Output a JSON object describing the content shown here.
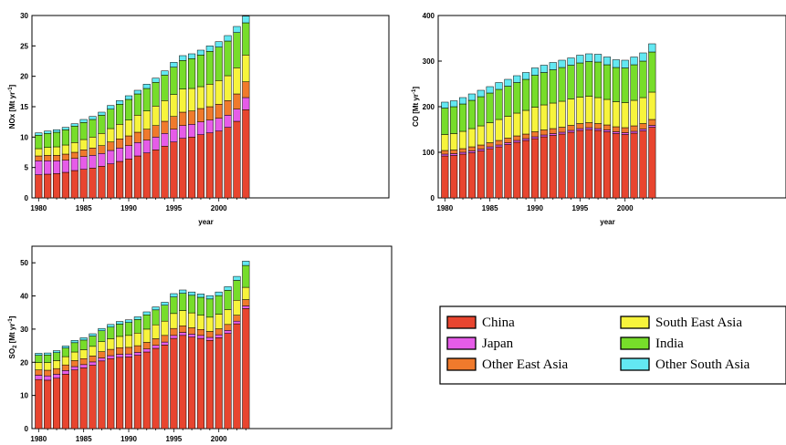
{
  "colors": {
    "China": "#e8452f",
    "Japan": "#e65ce8",
    "Other East Asia": "#f07a2c",
    "South East Asia": "#f7f43c",
    "India": "#77dd2a",
    "Other South Asia": "#63e8f2"
  },
  "legend": [
    {
      "name": "China",
      "color": "#e8452f"
    },
    {
      "name": "South East Asia",
      "color": "#f7f43c"
    },
    {
      "name": "Japan",
      "color": "#e65ce8"
    },
    {
      "name": "India",
      "color": "#77dd2a"
    },
    {
      "name": "Other East Asia",
      "color": "#f07a2c"
    },
    {
      "name": "Other South Asia",
      "color": "#63e8f2"
    }
  ],
  "chart_data": [
    {
      "type": "bar",
      "stacked": true,
      "ylabel_main": "NOx [Mt yr",
      "ylabel_sup": "-1",
      "ylabel_tail": "]",
      "xlabel": "year",
      "ylim": [
        0,
        30
      ],
      "yticks": [
        0,
        5,
        10,
        15,
        20,
        25,
        30
      ],
      "xtick_labels": [
        "1980",
        "1985",
        "1990",
        "1995",
        "2000"
      ],
      "x": [
        1980,
        1981,
        1982,
        1983,
        1984,
        1985,
        1986,
        1987,
        1988,
        1989,
        1990,
        1991,
        1992,
        1993,
        1994,
        1995,
        1996,
        1997,
        1998,
        1999,
        2000,
        2001,
        2002,
        2003
      ],
      "series": [
        {
          "name": "China",
          "values": [
            3.8,
            3.9,
            4.0,
            4.2,
            4.5,
            4.7,
            4.9,
            5.2,
            5.6,
            6.0,
            6.4,
            6.9,
            7.4,
            7.9,
            8.5,
            9.2,
            9.8,
            10.0,
            10.4,
            10.7,
            11.0,
            11.6,
            12.6,
            14.5
          ]
        },
        {
          "name": "Japan",
          "values": [
            2.3,
            2.2,
            2.1,
            2.0,
            2.0,
            2.1,
            2.1,
            2.1,
            2.2,
            2.2,
            2.2,
            2.2,
            2.1,
            2.1,
            2.1,
            2.1,
            2.1,
            2.1,
            2.1,
            2.1,
            2.1,
            2.0,
            2.0,
            2.0
          ]
        },
        {
          "name": "Other East Asia",
          "values": [
            0.8,
            0.9,
            0.9,
            1.0,
            1.0,
            1.1,
            1.2,
            1.3,
            1.4,
            1.5,
            1.6,
            1.7,
            1.8,
            1.9,
            2.0,
            2.1,
            2.2,
            2.2,
            2.2,
            2.2,
            2.3,
            2.4,
            2.5,
            2.6
          ]
        },
        {
          "name": "South East Asia",
          "values": [
            1.2,
            1.3,
            1.4,
            1.5,
            1.6,
            1.7,
            1.8,
            2.0,
            2.2,
            2.4,
            2.6,
            2.8,
            3.0,
            3.2,
            3.4,
            3.6,
            3.8,
            3.7,
            3.6,
            3.7,
            3.9,
            4.1,
            4.3,
            4.4
          ]
        },
        {
          "name": "India",
          "values": [
            2.2,
            2.3,
            2.4,
            2.5,
            2.7,
            2.8,
            2.9,
            3.0,
            3.2,
            3.3,
            3.4,
            3.5,
            3.7,
            3.9,
            4.2,
            4.5,
            4.7,
            4.9,
            5.2,
            5.4,
            5.5,
            5.7,
            5.8,
            5.3
          ]
        },
        {
          "name": "Other South Asia",
          "values": [
            0.4,
            0.4,
            0.4,
            0.4,
            0.4,
            0.5,
            0.5,
            0.5,
            0.6,
            0.6,
            0.6,
            0.6,
            0.7,
            0.7,
            0.7,
            0.8,
            0.8,
            0.8,
            0.8,
            0.9,
            0.9,
            0.9,
            1.0,
            1.1
          ]
        }
      ]
    },
    {
      "type": "bar",
      "stacked": true,
      "ylabel_main": "CO [Mt yr",
      "ylabel_sup": "-1",
      "ylabel_tail": "]",
      "xlabel": "year",
      "ylim": [
        0,
        400
      ],
      "yticks": [
        0,
        100,
        200,
        300,
        400
      ],
      "xtick_labels": [
        "1980",
        "1985",
        "1990",
        "1995",
        "2000"
      ],
      "x": [
        1980,
        1981,
        1982,
        1983,
        1984,
        1985,
        1986,
        1987,
        1988,
        1989,
        1990,
        1991,
        1992,
        1993,
        1994,
        1995,
        1996,
        1997,
        1998,
        1999,
        2000,
        2001,
        2002,
        2003
      ],
      "series": [
        {
          "name": "China",
          "values": [
            92,
            93,
            96,
            99,
            103,
            108,
            112,
            117,
            122,
            126,
            130,
            134,
            137,
            140,
            144,
            148,
            150,
            148,
            145,
            141,
            139,
            142,
            147,
            155
          ]
        },
        {
          "name": "Japan",
          "values": [
            4,
            4,
            4,
            4,
            4,
            4,
            4,
            4,
            4,
            4,
            4,
            4,
            4,
            4,
            4,
            4,
            4,
            4,
            4,
            4,
            4,
            4,
            4,
            4
          ]
        },
        {
          "name": "Other East Asia",
          "values": [
            8,
            8,
            8,
            9,
            9,
            9,
            10,
            10,
            10,
            10,
            11,
            11,
            11,
            11,
            11,
            11,
            11,
            11,
            11,
            11,
            11,
            12,
            12,
            13
          ]
        },
        {
          "name": "South East Asia",
          "values": [
            35,
            36,
            38,
            40,
            42,
            44,
            46,
            48,
            50,
            52,
            54,
            55,
            56,
            57,
            58,
            58,
            58,
            57,
            56,
            55,
            55,
            56,
            57,
            60
          ]
        },
        {
          "name": "India",
          "values": [
            58,
            59,
            60,
            62,
            64,
            65,
            66,
            66,
            67,
            68,
            70,
            71,
            73,
            74,
            74,
            75,
            76,
            78,
            76,
            75,
            76,
            78,
            80,
            88
          ]
        },
        {
          "name": "Other South Asia",
          "values": [
            13,
            13,
            14,
            14,
            14,
            14,
            15,
            15,
            15,
            15,
            16,
            16,
            16,
            16,
            16,
            17,
            17,
            17,
            17,
            17,
            17,
            17,
            18,
            18
          ]
        }
      ]
    },
    {
      "type": "bar",
      "stacked": true,
      "ylabel_main": "SO",
      "ylabel_sub": "2",
      "ylabel_rest": " [Mt yr",
      "ylabel_sup": "-1",
      "ylabel_tail": "]",
      "xlabel": "",
      "ylim": [
        0,
        55
      ],
      "yticks": [
        0,
        10,
        20,
        30,
        40,
        50
      ],
      "xtick_labels": [
        "1980",
        "1985",
        "1990",
        "1995",
        "2000"
      ],
      "x": [
        1980,
        1981,
        1982,
        1983,
        1984,
        1985,
        1986,
        1987,
        1988,
        1989,
        1990,
        1991,
        1992,
        1993,
        1994,
        1995,
        1996,
        1997,
        1998,
        1999,
        2000,
        2001,
        2002,
        2003
      ],
      "series": [
        {
          "name": "China",
          "values": [
            14.8,
            14.6,
            15.2,
            16.4,
            17.7,
            18.3,
            19.1,
            20.4,
            21.1,
            21.5,
            21.6,
            22.1,
            23.1,
            24.2,
            25.2,
            27.2,
            28.1,
            27.6,
            27.2,
            26.6,
            27.4,
            28.7,
            31.6,
            36.2
          ]
        },
        {
          "name": "Japan",
          "values": [
            1.3,
            1.3,
            1.2,
            1.1,
            1.0,
            1.0,
            1.0,
            0.9,
            0.9,
            0.9,
            0.9,
            0.9,
            0.9,
            0.9,
            0.9,
            0.9,
            0.9,
            0.9,
            0.9,
            0.9,
            0.9,
            0.9,
            0.8,
            0.8
          ]
        },
        {
          "name": "Other East Asia",
          "values": [
            1.6,
            1.7,
            1.7,
            1.7,
            1.8,
            1.8,
            1.8,
            1.9,
            1.9,
            2.0,
            2.0,
            2.0,
            2.0,
            2.0,
            2.0,
            2.1,
            2.0,
            1.9,
            1.8,
            1.8,
            1.8,
            1.8,
            1.8,
            1.9
          ]
        },
        {
          "name": "South East Asia",
          "values": [
            2.2,
            2.3,
            2.4,
            2.5,
            2.6,
            2.7,
            2.9,
            3.0,
            3.2,
            3.4,
            3.6,
            3.8,
            4.0,
            4.2,
            4.3,
            4.5,
            4.6,
            4.5,
            4.3,
            4.3,
            4.4,
            4.5,
            4.5,
            3.7
          ]
        },
        {
          "name": "India",
          "values": [
            2.2,
            2.3,
            2.4,
            2.6,
            2.8,
            2.9,
            3.1,
            3.3,
            3.5,
            3.7,
            3.9,
            4.1,
            4.3,
            4.5,
            4.8,
            5.0,
            5.2,
            5.3,
            5.4,
            5.5,
            5.6,
            5.8,
            6.0,
            6.6
          ]
        },
        {
          "name": "Other South Asia",
          "values": [
            0.6,
            0.6,
            0.6,
            0.6,
            0.7,
            0.7,
            0.7,
            0.7,
            0.8,
            0.8,
            0.8,
            0.8,
            0.9,
            0.9,
            0.9,
            1.0,
            1.0,
            1.0,
            1.0,
            1.0,
            1.1,
            1.1,
            1.2,
            1.3
          ]
        }
      ]
    }
  ]
}
